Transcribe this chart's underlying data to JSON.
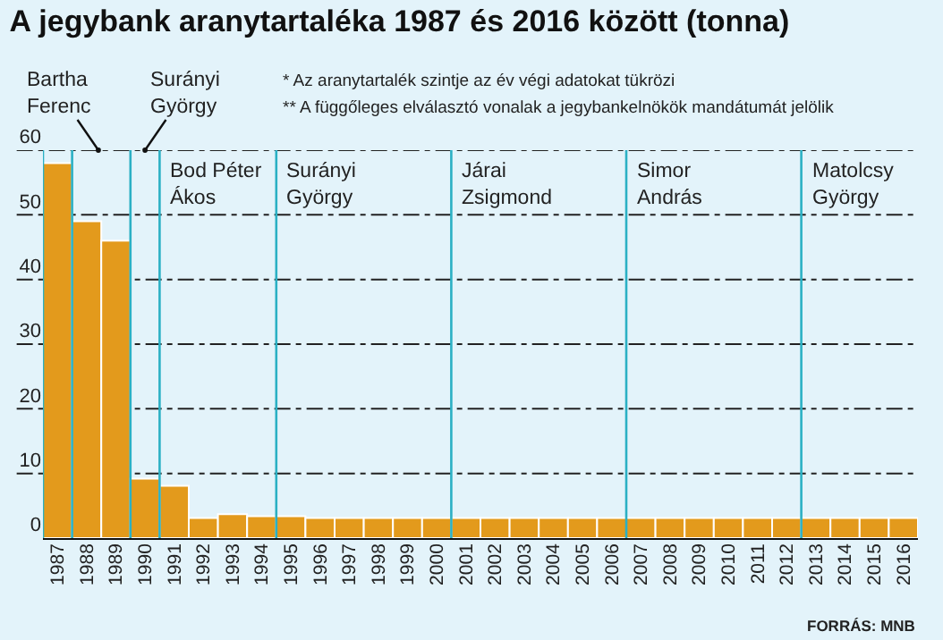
{
  "chart_data": {
    "type": "bar",
    "title": "A jegybank aranytartaléka 1987 és 2016 között (tonna)",
    "x": [
      1987,
      1988,
      1989,
      1990,
      1991,
      1992,
      1993,
      1994,
      1995,
      1996,
      1997,
      1998,
      1999,
      2000,
      2001,
      2002,
      2003,
      2004,
      2005,
      2006,
      2007,
      2008,
      2009,
      2010,
      2011,
      2012,
      2013,
      2014,
      2015,
      2016
    ],
    "values": [
      58,
      49,
      46,
      9.2,
      8.1,
      3.1,
      3.7,
      3.4,
      3.4,
      3.1,
      3.1,
      3.1,
      3.1,
      3.1,
      3.1,
      3.1,
      3.1,
      3.1,
      3.1,
      3.1,
      3.1,
      3.1,
      3.1,
      3.1,
      3.1,
      3.1,
      3.1,
      3.1,
      3.1,
      3.1
    ],
    "color": "#e39a1c",
    "xlim": [
      1986.5,
      2016.5
    ],
    "xticks": [
      1987,
      1988,
      1989,
      1990,
      1991,
      1992,
      1993,
      1994,
      1995,
      1996,
      1997,
      1998,
      1999,
      2000,
      2001,
      2002,
      2003,
      2004,
      2005,
      2006,
      2007,
      2008,
      2009,
      2010,
      2011,
      2012,
      2013,
      2014,
      2015,
      2016
    ],
    "ylim": [
      0,
      60
    ],
    "yticks": [
      0,
      10,
      20,
      30,
      40,
      50,
      60
    ],
    "grid": "y",
    "ref_lines": [
      {
        "axis": "x",
        "value": 1986.5,
        "color": "#2bb0c4"
      },
      {
        "axis": "x",
        "value": 1987.5,
        "color": "#2bb0c4"
      },
      {
        "axis": "x",
        "value": 1989.5,
        "color": "#2bb0c4"
      },
      {
        "axis": "x",
        "value": 1990.5,
        "color": "#2bb0c4"
      },
      {
        "axis": "x",
        "value": 1994.5,
        "color": "#2bb0c4"
      },
      {
        "axis": "x",
        "value": 2000.5,
        "color": "#2bb0c4"
      },
      {
        "axis": "x",
        "value": 2006.5,
        "color": "#2bb0c4"
      },
      {
        "axis": "x",
        "value": 2012.5,
        "color": "#2bb0c4"
      }
    ],
    "annotations": [
      "* Az aranytartalék szintje az év végi adatokat tükrözi",
      "** A függőleges elválasztó vonalak a jegybankelnökök mandátumát jelölik",
      {
        "text": "Bartha\nFerenc",
        "x": 1988.4,
        "y": 60
      },
      {
        "text": "Surányi\nGyörgy",
        "x": 1990.0,
        "y": 60
      },
      {
        "text": "Bod Péter\nÁkos",
        "x": 1990.5,
        "y": 60
      },
      {
        "text": "Surányi\nGyörgy",
        "x": 1994.5,
        "y": 60
      },
      {
        "text": "Járai\nZsigmond",
        "x": 2000.5,
        "y": 60
      },
      {
        "text": "Simor\nAndrás",
        "x": 2006.5,
        "y": 60
      },
      {
        "text": "Matolcsy\nGyörgy",
        "x": 2012.5,
        "y": 60
      },
      "FORRÁS: MNB"
    ]
  }
}
